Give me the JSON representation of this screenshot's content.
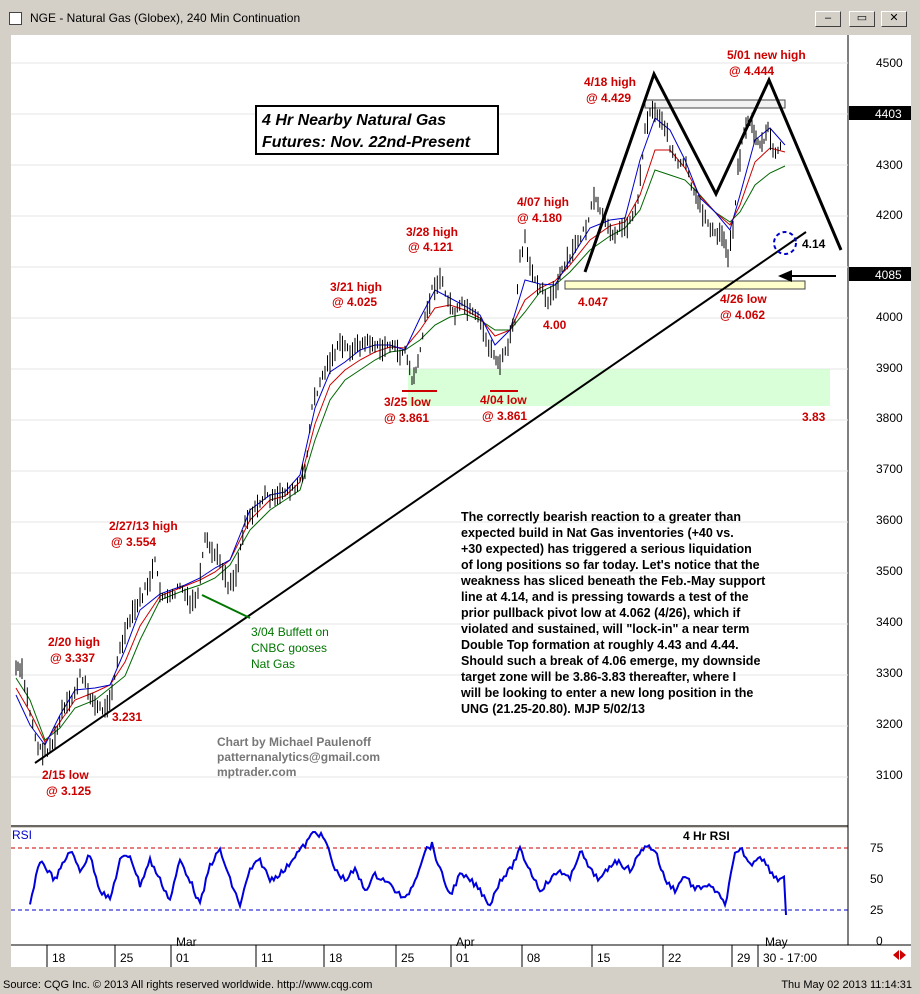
{
  "window": {
    "title": "NGE - Natural Gas (Globex), 240 Min Continuation",
    "minimize_label": "–",
    "restore_label": "▭",
    "close_label": "✕"
  },
  "price_axis": {
    "ticks": [
      "4500",
      "4400",
      "4300",
      "4200",
      "4100",
      "4000",
      "3900",
      "3800",
      "3700",
      "3600",
      "3500",
      "3400",
      "3300",
      "3200",
      "3100"
    ],
    "last_price_tag": "4403",
    "current_price_tag": "4085"
  },
  "rsi_axis": {
    "ticks": [
      "75",
      "50",
      "25",
      "0"
    ]
  },
  "time_axis": {
    "months": [
      "Mar",
      "Apr",
      "May"
    ],
    "days": [
      "18",
      "25",
      "01",
      "11",
      "18",
      "25",
      "01",
      "08",
      "15",
      "22",
      "29",
      "30 - 17:00"
    ]
  },
  "rsi_panel": {
    "label": "RSI",
    "title": "4 Hr RSI"
  },
  "chart_title": [
    "4 Hr Nearby Natural Gas",
    "Futures: Nov. 22nd-Present"
  ],
  "annotations": {
    "feb15_low": [
      "2/15 low",
      "@ 3.125"
    ],
    "feb20_high": [
      "2/20 high",
      "@ 3.337"
    ],
    "feb27_high": [
      "2/27/13 high",
      "@ 3.554"
    ],
    "support_3231": "3.231",
    "buffett": [
      "3/04 Buffett on",
      "CNBC gooses",
      "Nat Gas"
    ],
    "mar21_high": [
      "3/21 high",
      "@ 4.025"
    ],
    "mar28_high": [
      "3/28 high",
      "@ 4.121"
    ],
    "mar25_low": [
      "3/25 low",
      "@ 3.861"
    ],
    "apr04_low": [
      "4/04 low",
      "@ 3.861"
    ],
    "apr07_high": [
      "4/07 high",
      "@ 4.180"
    ],
    "level_400": "4.00",
    "level_4047": "4.047",
    "apr18_high": [
      "4/18 high",
      "@ 4.429"
    ],
    "may01_high": [
      "5/01 new high",
      "@ 4.444"
    ],
    "apr26_low": [
      "4/26 low",
      "@ 4.062"
    ],
    "level_414": "4.14",
    "level_383": "3.83"
  },
  "credits": [
    "Chart by Michael Paulenoff",
    "patternanalytics@gmail.com",
    "mptrader.com"
  ],
  "commentary": [
    "The correctly bearish reaction to a greater than",
    "expected build in Nat Gas inventories (+40 vs.",
    "+30 expected) has triggered a serious liquidation",
    "of long positions so far today. Let's notice that the",
    "weakness has sliced beneath the Feb.-May support",
    "line at 4.14, and is pressing towards a test of the",
    "prior pullback pivot low at 4.062 (4/26), which if",
    "violated and sustained, will \"lock-in\" a near term",
    "Double Top formation at roughly 4.43 and 4.44.",
    "Should such a break of 4.06 emerge, my downside",
    "target zone will be 3.86-3.83 thereafter, where I",
    "will be looking to enter a new long position in the",
    "UNG (21.25-20.80). MJP 5/02/13"
  ],
  "footer": {
    "left": "Source: CQG Inc. © 2013 All rights reserved worldwide. http://www.cqg.com",
    "right": "Thu May 02 2013 11:14:31"
  },
  "colors": {
    "annotation_red": "#cc0000",
    "buffett_green": "#007700",
    "price_bars": "#000000",
    "ma_fast": "#0000cc",
    "ma_mid": "#cc0000",
    "ma_slow": "#006600",
    "rsi_line": "#0000dd",
    "support_zone": "#ccffcc",
    "resistance_band": "#ffffcc"
  }
}
